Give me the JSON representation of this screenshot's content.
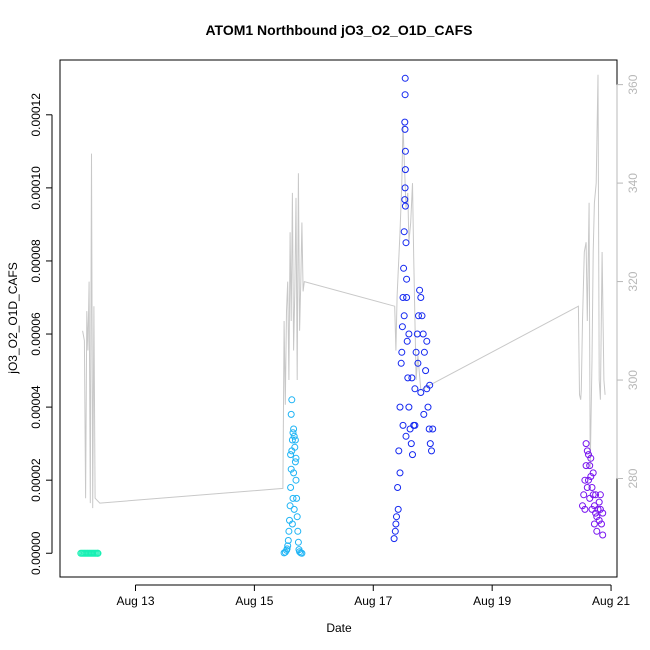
{
  "chart_data": {
    "type": "scatter",
    "title": "ATOM1 Northbound jO3_O2_O1D_CAFS",
    "xlabel": "Date",
    "ylabel": "jO3_O2_O1D_CAFS",
    "x_ticks": [
      "Aug 13",
      "Aug 15",
      "Aug 17",
      "Aug 19",
      "Aug 21"
    ],
    "x_tick_days": [
      13,
      15,
      17,
      19,
      21
    ],
    "xlim_days": [
      11.73,
      21.1
    ],
    "y_ticks": [
      "0.00000",
      "0.00002",
      "0.00004",
      "0.00006",
      "0.00008",
      "0.00010",
      "0.00012"
    ],
    "y_tick_values": [
      0,
      2e-05,
      4e-05,
      6e-05,
      8e-05,
      0.0001,
      0.00012
    ],
    "ylim": [
      -6.5e-06,
      0.000135
    ],
    "y2_ticks": [
      "280",
      "300",
      "320",
      "340",
      "360"
    ],
    "y2_tick_values": [
      280,
      300,
      320,
      340,
      360
    ],
    "y2lim": [
      260,
      365
    ],
    "grid": false,
    "legend": "none",
    "line_color": "#c8c8c8",
    "series": [
      {
        "color": "#19f0b4",
        "points": [
          [
            12.08,
            0
          ],
          [
            12.1,
            0
          ],
          [
            12.12,
            0
          ],
          [
            12.14,
            0
          ],
          [
            12.16,
            0
          ],
          [
            12.18,
            0
          ],
          [
            12.2,
            0
          ],
          [
            12.22,
            0
          ],
          [
            12.24,
            0
          ],
          [
            12.26,
            0
          ],
          [
            12.28,
            0
          ],
          [
            12.3,
            0
          ],
          [
            12.32,
            0
          ],
          [
            12.34,
            0
          ],
          [
            12.36,
            0
          ],
          [
            12.37,
            0
          ]
        ]
      },
      {
        "color": "#1eb4f5",
        "points": [
          [
            15.5,
            1e-07
          ],
          [
            15.52,
            3e-07
          ],
          [
            15.54,
            8e-07
          ],
          [
            15.55,
            1.2e-06
          ],
          [
            15.56,
            2e-06
          ],
          [
            15.57,
            3.5e-06
          ],
          [
            15.58,
            6e-06
          ],
          [
            15.59,
            9e-06
          ],
          [
            15.6,
            1.3e-05
          ],
          [
            15.61,
            1.8e-05
          ],
          [
            15.62,
            2.3e-05
          ],
          [
            15.63,
            2.8e-05
          ],
          [
            15.64,
            3.1e-05
          ],
          [
            15.65,
            3.3e-05
          ],
          [
            15.66,
            3.4e-05
          ],
          [
            15.67,
            3.2e-05
          ],
          [
            15.68,
            2.9e-05
          ],
          [
            15.69,
            2.5e-05
          ],
          [
            15.7,
            2e-05
          ],
          [
            15.71,
            1.5e-05
          ],
          [
            15.72,
            1e-05
          ],
          [
            15.73,
            6e-06
          ],
          [
            15.74,
            3e-06
          ],
          [
            15.75,
            1e-06
          ],
          [
            15.76,
            4e-07
          ],
          [
            15.78,
            1e-07
          ],
          [
            15.8,
            0
          ],
          [
            15.62,
            3.8e-05
          ],
          [
            15.63,
            4.2e-05
          ],
          [
            15.65,
            1.5e-05
          ],
          [
            15.66,
            2.2e-05
          ],
          [
            15.67,
            1.2e-05
          ],
          [
            15.64,
            8e-06
          ],
          [
            15.69,
            3.1e-05
          ],
          [
            15.7,
            2.6e-05
          ],
          [
            15.61,
            2.7e-05
          ]
        ]
      },
      {
        "color": "#1428f0",
        "points": [
          [
            17.35,
            4e-06
          ],
          [
            17.37,
            6e-06
          ],
          [
            17.39,
            1e-05
          ],
          [
            17.41,
            1.8e-05
          ],
          [
            17.43,
            2.8e-05
          ],
          [
            17.45,
            4e-05
          ],
          [
            17.47,
            5.2e-05
          ],
          [
            17.49,
            6.2e-05
          ],
          [
            17.5,
            7e-05
          ],
          [
            17.51,
            7.8e-05
          ],
          [
            17.52,
            8.8e-05
          ],
          [
            17.53,
            9.68e-05
          ],
          [
            17.535,
            0.0001
          ],
          [
            17.54,
            9.5e-05
          ],
          [
            17.55,
            8.5e-05
          ],
          [
            17.56,
            7e-05
          ],
          [
            17.57,
            5.8e-05
          ],
          [
            17.58,
            4.8e-05
          ],
          [
            17.6,
            4e-05
          ],
          [
            17.62,
            3.4e-05
          ],
          [
            17.64,
            3e-05
          ],
          [
            17.66,
            2.7e-05
          ],
          [
            17.68,
            3.5e-05
          ],
          [
            17.7,
            4.5e-05
          ],
          [
            17.72,
            5.5e-05
          ],
          [
            17.74,
            6e-05
          ],
          [
            17.76,
            6.5e-05
          ],
          [
            17.78,
            7.2e-05
          ],
          [
            17.8,
            7e-05
          ],
          [
            17.82,
            6.5e-05
          ],
          [
            17.84,
            6e-05
          ],
          [
            17.86,
            5.5e-05
          ],
          [
            17.88,
            5e-05
          ],
          [
            17.9,
            4.5e-05
          ],
          [
            17.92,
            4e-05
          ],
          [
            17.94,
            3.4e-05
          ],
          [
            17.96,
            3e-05
          ],
          [
            17.98,
            2.8e-05
          ],
          [
            18.0,
            3.4e-05
          ],
          [
            17.48,
            5.5e-05
          ],
          [
            17.52,
            6.5e-05
          ],
          [
            17.56,
            7.5e-05
          ],
          [
            17.6,
            6e-05
          ],
          [
            17.65,
            4.8e-05
          ],
          [
            17.7,
            3.5e-05
          ],
          [
            17.75,
            5.2e-05
          ],
          [
            17.8,
            4.4e-05
          ],
          [
            17.85,
            3.8e-05
          ],
          [
            17.9,
            5.8e-05
          ],
          [
            17.95,
            4.6e-05
          ],
          [
            17.5,
            3.5e-05
          ],
          [
            17.55,
            3.2e-05
          ],
          [
            17.45,
            2.2e-05
          ],
          [
            17.42,
            1.2e-05
          ],
          [
            17.38,
            8e-06
          ],
          [
            17.54,
            0.00011
          ],
          [
            17.53,
            0.000118
          ],
          [
            17.535,
            0.0001255
          ],
          [
            17.537,
            0.00013
          ],
          [
            17.533,
            0.000116
          ],
          [
            17.54,
            0.000105
          ]
        ]
      },
      {
        "color": "#7814f0",
        "points": [
          [
            20.52,
            1.3e-05
          ],
          [
            20.54,
            1.6e-05
          ],
          [
            20.56,
            2e-05
          ],
          [
            20.58,
            2.4e-05
          ],
          [
            20.6,
            2.8e-05
          ],
          [
            20.62,
            2.7e-05
          ],
          [
            20.64,
            2.4e-05
          ],
          [
            20.66,
            2.1e-05
          ],
          [
            20.68,
            1.8e-05
          ],
          [
            20.7,
            1.6e-05
          ],
          [
            20.72,
            1.3e-05
          ],
          [
            20.74,
            1.1e-05
          ],
          [
            20.76,
            1e-05
          ],
          [
            20.78,
            1.2e-05
          ],
          [
            20.8,
            1.4e-05
          ],
          [
            20.82,
            1.2e-05
          ],
          [
            20.84,
            8e-06
          ],
          [
            20.86,
            5e-06
          ],
          [
            20.6,
            1.8e-05
          ],
          [
            20.64,
            1.5e-05
          ],
          [
            20.68,
            1.2e-05
          ],
          [
            20.72,
            8e-06
          ],
          [
            20.76,
            6e-06
          ],
          [
            20.8,
            9e-06
          ],
          [
            20.56,
            1.2e-05
          ],
          [
            20.62,
            2e-05
          ],
          [
            20.7,
            2.2e-05
          ],
          [
            20.74,
            1.6e-05
          ],
          [
            20.82,
            1.6e-05
          ],
          [
            20.86,
            1.1e-05
          ],
          [
            20.58,
            3e-05
          ],
          [
            20.66,
            2.6e-05
          ]
        ]
      }
    ],
    "secondary_line": {
      "points": [
        [
          12.11,
          310
        ],
        [
          12.14,
          308
        ],
        [
          12.16,
          276
        ],
        [
          12.18,
          314
        ],
        [
          12.2,
          306
        ],
        [
          12.22,
          320
        ],
        [
          12.24,
          275
        ],
        [
          12.26,
          346
        ],
        [
          12.28,
          274
        ],
        [
          12.3,
          315
        ],
        [
          12.32,
          276
        ],
        [
          12.4,
          275
        ],
        [
          15.48,
          278
        ],
        [
          15.5,
          312
        ],
        [
          15.52,
          295
        ],
        [
          15.54,
          314
        ],
        [
          15.56,
          320
        ],
        [
          15.58,
          300
        ],
        [
          15.6,
          330
        ],
        [
          15.62,
          312
        ],
        [
          15.64,
          338
        ],
        [
          15.66,
          306
        ],
        [
          15.68,
          318
        ],
        [
          15.7,
          337
        ],
        [
          15.72,
          300
        ],
        [
          15.74,
          342
        ],
        [
          15.76,
          310
        ],
        [
          15.78,
          320
        ],
        [
          15.8,
          332
        ],
        [
          15.82,
          318
        ],
        [
          15.84,
          320
        ],
        [
          17.36,
          315
        ],
        [
          17.38,
          306
        ],
        [
          17.4,
          317
        ],
        [
          17.42,
          322
        ],
        [
          17.45,
          330
        ],
        [
          17.48,
          340
        ],
        [
          17.5,
          352
        ],
        [
          17.52,
          345
        ],
        [
          17.55,
          335
        ],
        [
          17.58,
          338
        ],
        [
          17.6,
          328
        ],
        [
          17.63,
          332
        ],
        [
          17.66,
          340
        ],
        [
          17.68,
          325
        ],
        [
          17.72,
          300
        ],
        [
          17.75,
          305
        ],
        [
          17.8,
          298
        ],
        [
          20.45,
          315
        ],
        [
          20.47,
          297
        ],
        [
          20.49,
          296
        ],
        [
          20.5,
          298
        ],
        [
          20.52,
          312
        ],
        [
          20.55,
          326
        ],
        [
          20.58,
          328
        ],
        [
          20.6,
          312
        ],
        [
          20.63,
          336
        ],
        [
          20.65,
          282
        ],
        [
          20.68,
          304
        ],
        [
          20.7,
          326
        ],
        [
          20.72,
          336
        ],
        [
          20.75,
          340
        ],
        [
          20.78,
          362
        ],
        [
          20.8,
          300
        ],
        [
          20.82,
          296
        ],
        [
          20.85,
          326
        ],
        [
          20.88,
          300
        ],
        [
          20.9,
          297
        ]
      ]
    }
  }
}
